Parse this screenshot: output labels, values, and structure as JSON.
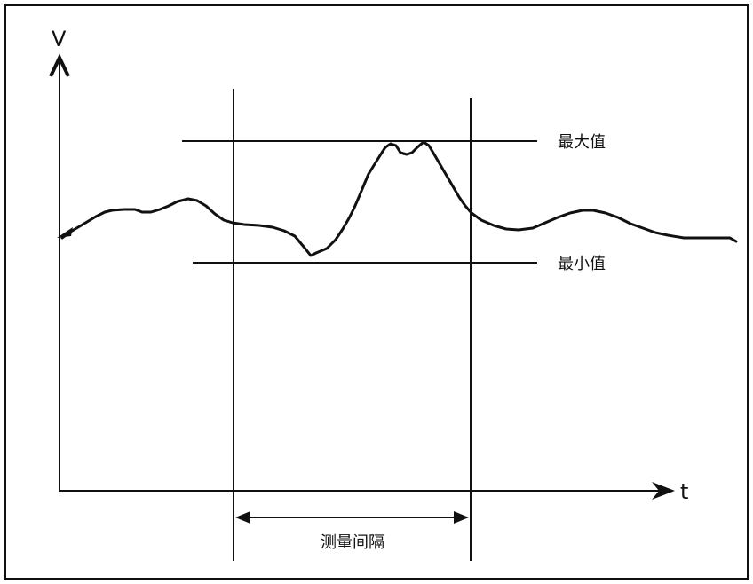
{
  "diagram": {
    "y_axis_label": "V",
    "x_axis_label": "t",
    "max_label": "最大值",
    "min_label": "最小值",
    "interval_label": "测量间隔",
    "line_color": "#111111",
    "background": "#ffffff"
  }
}
